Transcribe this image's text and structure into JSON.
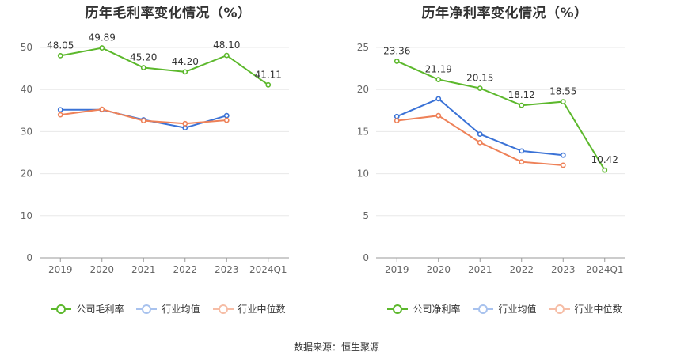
{
  "source": "数据来源：恒生聚源",
  "chart_data": [
    {
      "type": "line",
      "title": "历年毛利率变化情况（%）",
      "categories": [
        "2019",
        "2020",
        "2021",
        "2022",
        "2023",
        "2024Q1"
      ],
      "ylim": [
        0,
        50
      ],
      "yticks": [
        0,
        10,
        20,
        30,
        40,
        50
      ],
      "grid": true,
      "legend_position": "bottom",
      "series": [
        {
          "name": "公司毛利率",
          "color": "#5cb82c",
          "values": [
            48.05,
            49.89,
            45.2,
            44.2,
            48.1,
            41.11
          ],
          "labels": [
            "48.05",
            "49.89",
            "45.20",
            "44.20",
            "48.10",
            "41.11"
          ]
        },
        {
          "name": "行业均值",
          "color": "#3a72d6",
          "values": [
            35.2,
            35.2,
            32.8,
            30.9,
            33.8,
            null
          ]
        },
        {
          "name": "行业中位数",
          "color": "#ee8158",
          "values": [
            34.0,
            35.3,
            32.6,
            31.9,
            32.7,
            null
          ]
        }
      ]
    },
    {
      "type": "line",
      "title": "历年净利率变化情况（%）",
      "categories": [
        "2019",
        "2020",
        "2021",
        "2022",
        "2023",
        "2024Q1"
      ],
      "ylim": [
        0,
        25
      ],
      "yticks": [
        0,
        5,
        10,
        15,
        20,
        25
      ],
      "grid": true,
      "legend_position": "bottom",
      "series": [
        {
          "name": "公司净利率",
          "color": "#5cb82c",
          "values": [
            23.36,
            21.19,
            20.15,
            18.12,
            18.55,
            10.42
          ],
          "labels": [
            "23.36",
            "21.19",
            "20.15",
            "18.12",
            "18.55",
            "10.42"
          ]
        },
        {
          "name": "行业均值",
          "color": "#3a72d6",
          "values": [
            16.8,
            18.9,
            14.7,
            12.7,
            12.2,
            null
          ]
        },
        {
          "name": "行业中位数",
          "color": "#ee8158",
          "values": [
            16.3,
            16.9,
            13.7,
            11.4,
            11.0,
            null
          ]
        }
      ]
    }
  ]
}
